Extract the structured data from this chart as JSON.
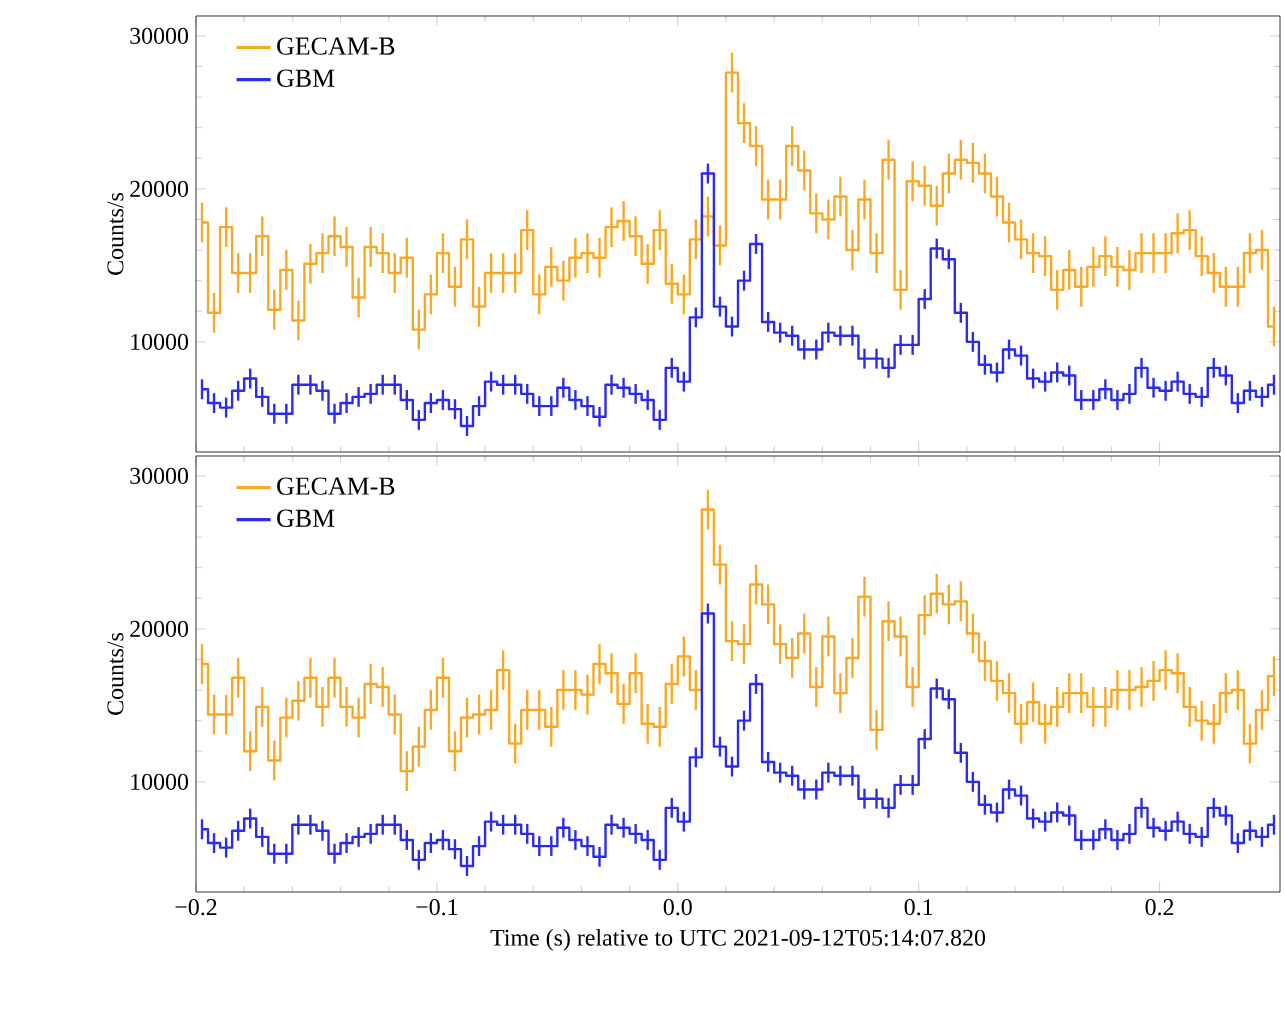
{
  "chart_data": [
    {
      "type": "step",
      "ylabel": "Counts/s",
      "legend": "top left",
      "tick_labels": "y",
      "xlim": [
        -0.2,
        0.25
      ],
      "ylim": [
        2800,
        31300
      ],
      "xticks": [
        {
          "value": -0.2,
          "label": null
        },
        {
          "value": -0.1,
          "label": null
        },
        {
          "value": 0,
          "label": null
        },
        {
          "value": 0.1,
          "label": null
        },
        {
          "value": 0.2,
          "label": null
        }
      ],
      "yticks": [
        10000,
        20000,
        30000
      ],
      "x": [
        -0.1975,
        -0.1925,
        -0.1875,
        -0.1825,
        -0.1775,
        -0.1725,
        -0.1675,
        -0.1625,
        -0.1575,
        -0.1525,
        -0.1475,
        -0.1425,
        -0.1375,
        -0.1325,
        -0.1275,
        -0.1225,
        -0.1175,
        -0.1125,
        -0.1075,
        -0.1025,
        -0.0975,
        -0.0925,
        -0.0875,
        -0.0825,
        -0.0775,
        -0.0725,
        -0.0675,
        -0.0625,
        -0.0575,
        -0.0525,
        -0.0475,
        -0.0425,
        -0.0375,
        -0.0325,
        -0.0275,
        -0.0225,
        -0.0175,
        -0.0125,
        -0.0075,
        -0.0025,
        0.0025,
        0.0075,
        0.0125,
        0.0175,
        0.0225,
        0.0275,
        0.0325,
        0.0375,
        0.0425,
        0.0475,
        0.0525,
        0.0575,
        0.0625,
        0.0675,
        0.0725,
        0.0775,
        0.0825,
        0.0875,
        0.0925,
        0.0975,
        0.1025,
        0.1075,
        0.1125,
        0.1175,
        0.1225,
        0.1275,
        0.1325,
        0.1375,
        0.1425,
        0.1475,
        0.1525,
        0.1575,
        0.1625,
        0.1675,
        0.1725,
        0.1775,
        0.1825,
        0.1875,
        0.1925,
        0.1975,
        0.2025,
        0.2075,
        0.2125,
        0.2175,
        0.2225,
        0.2275,
        0.2325,
        0.2375,
        0.2425,
        0.2475
      ],
      "series": [
        {
          "name": "GECAM-B",
          "color": "#f9a825",
          "values": [
            17800,
            11900,
            17500,
            14500,
            14500,
            16900,
            12100,
            14700,
            11400,
            15100,
            15800,
            16900,
            16200,
            12900,
            16200,
            15800,
            14500,
            15500,
            10800,
            13100,
            15800,
            13600,
            16700,
            12300,
            14500,
            14500,
            14500,
            17300,
            13100,
            14900,
            14000,
            15500,
            15800,
            15500,
            17500,
            17900,
            16900,
            15100,
            17300,
            13800,
            13100,
            16700,
            18200,
            16300,
            27600,
            24300,
            22800,
            19300,
            19300,
            22800,
            21200,
            18400,
            18000,
            19500,
            16000,
            19300,
            15800,
            21900,
            13400,
            20500,
            20200,
            18900,
            21000,
            21900,
            21700,
            21000,
            19500,
            17800,
            16700,
            15800,
            15600,
            13400,
            14700,
            13600,
            14900,
            15600,
            14900,
            14700,
            15800,
            15800,
            15800,
            17100,
            17300,
            15600,
            14500,
            13600,
            13600,
            15800,
            16000,
            11000
          ],
          "errors": [
            1300,
            1300,
            1300,
            1300,
            1300,
            1300,
            1300,
            1300,
            1300,
            1300,
            1300,
            1300,
            1300,
            1300,
            1300,
            1300,
            1300,
            1300,
            1300,
            1300,
            1300,
            1300,
            1300,
            1300,
            1300,
            1300,
            1300,
            1300,
            1300,
            1300,
            1300,
            1300,
            1300,
            1300,
            1300,
            1300,
            1300,
            1300,
            1300,
            1300,
            1300,
            1300,
            1300,
            1300,
            1300,
            1300,
            1300,
            1300,
            1300,
            1300,
            1300,
            1300,
            1300,
            1300,
            1300,
            1300,
            1300,
            1300,
            1300,
            1300,
            1300,
            1300,
            1300,
            1300,
            1300,
            1300,
            1300,
            1300,
            1300,
            1300,
            1300,
            1300,
            1300,
            1300,
            1300,
            1300,
            1300,
            1300,
            1300,
            1300,
            1300,
            1300,
            1300,
            1300,
            1300,
            1300,
            1300,
            1300,
            1300,
            1300
          ]
        },
        {
          "name": "GBM",
          "color": "#2b2bf0",
          "values": [
            6900,
            6000,
            5700,
            6800,
            7600,
            6400,
            5300,
            5300,
            7200,
            7200,
            6800,
            5300,
            6000,
            6400,
            6600,
            7200,
            7200,
            6200,
            4900,
            6000,
            6200,
            5600,
            4500,
            5800,
            7400,
            7200,
            7200,
            6600,
            5800,
            5800,
            7000,
            6200,
            5800,
            5100,
            7200,
            7000,
            6600,
            6200,
            4900,
            8300,
            7400,
            11600,
            21000,
            12300,
            11000,
            14000,
            16400,
            11300,
            10600,
            10400,
            9500,
            9500,
            10600,
            10400,
            10400,
            8900,
            8900,
            8300,
            9800,
            9800,
            12800,
            16100,
            15400,
            11900,
            10000,
            8500,
            8000,
            9500,
            9100,
            7600,
            7400,
            8000,
            7800,
            6200,
            6200,
            6900,
            6200,
            6600,
            8300,
            7000,
            6800,
            7400,
            6600,
            6400,
            8300,
            7800,
            6000,
            6800,
            6400,
            7200
          ],
          "errors": [
            650,
            650,
            650,
            650,
            650,
            650,
            650,
            650,
            650,
            650,
            650,
            650,
            650,
            650,
            650,
            650,
            650,
            650,
            650,
            650,
            650,
            650,
            650,
            650,
            650,
            650,
            650,
            650,
            650,
            650,
            650,
            650,
            650,
            650,
            650,
            650,
            650,
            650,
            650,
            650,
            650,
            650,
            650,
            650,
            650,
            650,
            650,
            650,
            650,
            650,
            650,
            650,
            650,
            650,
            650,
            650,
            650,
            650,
            650,
            650,
            650,
            650,
            650,
            650,
            650,
            650,
            650,
            650,
            650,
            650,
            650,
            650,
            650,
            650,
            650,
            650,
            650,
            650,
            650,
            650,
            650,
            650,
            650,
            650,
            650,
            650,
            650,
            650,
            650,
            650
          ]
        }
      ]
    },
    {
      "type": "step",
      "ylabel": "Counts/s",
      "xlabel": "Time (s) relative to UTC 2021-09-12T05:14:07.820",
      "legend": "top left",
      "xlim": [
        -0.2,
        0.25
      ],
      "ylim": [
        2800,
        31300
      ],
      "xticks": [
        {
          "value": -0.2,
          "label": "−0.2"
        },
        {
          "value": -0.1,
          "label": "−0.1"
        },
        {
          "value": 0,
          "label": "0.0"
        },
        {
          "value": 0.1,
          "label": "0.1"
        },
        {
          "value": 0.2,
          "label": "0.2"
        }
      ],
      "yticks": [
        10000,
        20000,
        30000
      ],
      "x": [
        -0.1975,
        -0.1925,
        -0.1875,
        -0.1825,
        -0.1775,
        -0.1725,
        -0.1675,
        -0.1625,
        -0.1575,
        -0.1525,
        -0.1475,
        -0.1425,
        -0.1375,
        -0.1325,
        -0.1275,
        -0.1225,
        -0.1175,
        -0.1125,
        -0.1075,
        -0.1025,
        -0.0975,
        -0.0925,
        -0.0875,
        -0.0825,
        -0.0775,
        -0.0725,
        -0.0675,
        -0.0625,
        -0.0575,
        -0.0525,
        -0.0475,
        -0.0425,
        -0.0375,
        -0.0325,
        -0.0275,
        -0.0225,
        -0.0175,
        -0.0125,
        -0.0075,
        -0.0025,
        0.0025,
        0.0075,
        0.0125,
        0.0175,
        0.0225,
        0.0275,
        0.0325,
        0.0375,
        0.0425,
        0.0475,
        0.0525,
        0.0575,
        0.0625,
        0.0675,
        0.0725,
        0.0775,
        0.0825,
        0.0875,
        0.0925,
        0.0975,
        0.1025,
        0.1075,
        0.1125,
        0.1175,
        0.1225,
        0.1275,
        0.1325,
        0.1375,
        0.1425,
        0.1475,
        0.1525,
        0.1575,
        0.1625,
        0.1675,
        0.1725,
        0.1775,
        0.1825,
        0.1875,
        0.1925,
        0.1975,
        0.2025,
        0.2075,
        0.2125,
        0.2175,
        0.2225,
        0.2275,
        0.2325,
        0.2375,
        0.2425,
        0.2475
      ],
      "series": [
        {
          "name": "GECAM-B",
          "color": "#f9a825",
          "values": [
            17700,
            14400,
            14400,
            16800,
            12000,
            14900,
            11400,
            14200,
            15300,
            16800,
            14900,
            16800,
            14900,
            14200,
            16400,
            16200,
            14400,
            10700,
            12300,
            14700,
            16800,
            12000,
            14200,
            14400,
            14700,
            17300,
            12500,
            14700,
            14700,
            13600,
            16000,
            16000,
            15700,
            17700,
            17100,
            15100,
            17100,
            13800,
            13600,
            16400,
            18200,
            16000,
            27800,
            24200,
            19200,
            19000,
            22900,
            21600,
            19000,
            18100,
            19700,
            16200,
            19500,
            15800,
            18100,
            22100,
            13400,
            20500,
            19500,
            16200,
            20900,
            22300,
            21600,
            21800,
            19700,
            17900,
            16600,
            15800,
            13800,
            15200,
            13800,
            14900,
            15800,
            15800,
            14900,
            14900,
            16000,
            16000,
            16200,
            16600,
            17300,
            17100,
            14900,
            14000,
            13800,
            15800,
            16000,
            12500,
            14700,
            16900
          ],
          "errors": [
            1300,
            1300,
            1300,
            1300,
            1300,
            1300,
            1300,
            1300,
            1300,
            1300,
            1300,
            1300,
            1300,
            1300,
            1300,
            1300,
            1300,
            1300,
            1300,
            1300,
            1300,
            1300,
            1300,
            1300,
            1300,
            1300,
            1300,
            1300,
            1300,
            1300,
            1300,
            1300,
            1300,
            1300,
            1300,
            1300,
            1300,
            1300,
            1300,
            1300,
            1300,
            1300,
            1300,
            1300,
            1300,
            1300,
            1300,
            1300,
            1300,
            1300,
            1300,
            1300,
            1300,
            1300,
            1300,
            1300,
            1300,
            1300,
            1300,
            1300,
            1300,
            1300,
            1300,
            1300,
            1300,
            1300,
            1300,
            1300,
            1300,
            1300,
            1300,
            1300,
            1300,
            1300,
            1300,
            1300,
            1300,
            1300,
            1300,
            1300,
            1300,
            1300,
            1300,
            1300,
            1300,
            1300,
            1300,
            1300,
            1300,
            1300
          ]
        },
        {
          "name": "GBM",
          "color": "#2b2bf0",
          "values": [
            6900,
            6000,
            5700,
            6800,
            7600,
            6400,
            5300,
            5300,
            7200,
            7200,
            6800,
            5300,
            6000,
            6400,
            6600,
            7200,
            7200,
            6200,
            4900,
            6000,
            6200,
            5600,
            4500,
            5800,
            7400,
            7200,
            7200,
            6600,
            5800,
            5800,
            7000,
            6200,
            5800,
            5100,
            7200,
            7000,
            6600,
            6200,
            4900,
            8300,
            7400,
            11600,
            21000,
            12300,
            11000,
            14000,
            16400,
            11300,
            10600,
            10400,
            9500,
            9500,
            10600,
            10400,
            10400,
            8900,
            8900,
            8300,
            9800,
            9800,
            12800,
            16100,
            15400,
            11900,
            10000,
            8500,
            8000,
            9500,
            9100,
            7600,
            7400,
            8000,
            7800,
            6200,
            6200,
            6900,
            6200,
            6600,
            8300,
            7000,
            6800,
            7400,
            6600,
            6400,
            8300,
            7800,
            6000,
            6800,
            6400,
            7200
          ],
          "errors": [
            650,
            650,
            650,
            650,
            650,
            650,
            650,
            650,
            650,
            650,
            650,
            650,
            650,
            650,
            650,
            650,
            650,
            650,
            650,
            650,
            650,
            650,
            650,
            650,
            650,
            650,
            650,
            650,
            650,
            650,
            650,
            650,
            650,
            650,
            650,
            650,
            650,
            650,
            650,
            650,
            650,
            650,
            650,
            650,
            650,
            650,
            650,
            650,
            650,
            650,
            650,
            650,
            650,
            650,
            650,
            650,
            650,
            650,
            650,
            650,
            650,
            650,
            650,
            650,
            650,
            650,
            650,
            650,
            650,
            650,
            650,
            650,
            650,
            650,
            650,
            650,
            650,
            650,
            650,
            650,
            650,
            650,
            650,
            650,
            650,
            650,
            650,
            650,
            650,
            650
          ]
        }
      ]
    }
  ]
}
